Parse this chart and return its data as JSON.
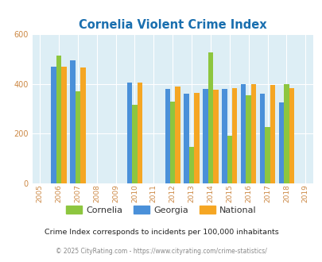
{
  "title": "Cornelia Violent Crime Index",
  "title_color": "#1a6faf",
  "subtitle": "Crime Index corresponds to incidents per 100,000 inhabitants",
  "footer": "© 2025 CityRating.com - https://www.cityrating.com/crime-statistics/",
  "years": [
    2005,
    2006,
    2007,
    2008,
    2009,
    2010,
    2011,
    2012,
    2013,
    2014,
    2015,
    2016,
    2017,
    2018,
    2019
  ],
  "data_years": [
    2006,
    2007,
    2010,
    2012,
    2013,
    2014,
    2015,
    2016,
    2017,
    2018
  ],
  "cornelia": [
    515,
    370,
    315,
    330,
    148,
    525,
    192,
    355,
    228,
    400
  ],
  "georgia": [
    470,
    495,
    405,
    380,
    360,
    380,
    380,
    400,
    360,
    325
  ],
  "national": [
    470,
    465,
    405,
    390,
    365,
    375,
    383,
    400,
    397,
    383
  ],
  "cornelia_color": "#8dc63f",
  "georgia_color": "#4a90d9",
  "national_color": "#f5a623",
  "bg_color": "#ddeef5",
  "ylim": [
    0,
    600
  ],
  "yticks": [
    0,
    200,
    400,
    600
  ],
  "bar_width": 0.27,
  "legend_labels": [
    "Cornelia",
    "Georgia",
    "National"
  ],
  "legend_color_text": "#333333",
  "subtitle_color": "#222222",
  "footer_color": "#888888",
  "tick_color": "#cc8844"
}
